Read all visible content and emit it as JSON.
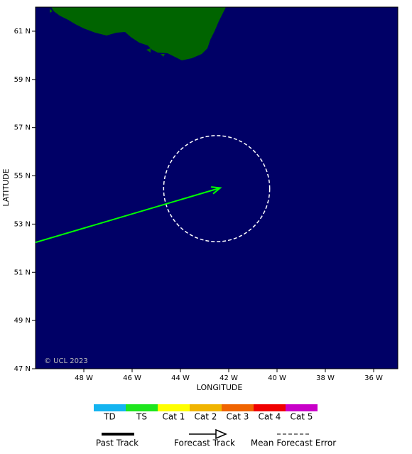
{
  "chart_data": {
    "type": "map",
    "xlabel": "LONGITUDE",
    "ylabel": "LATITUDE",
    "xlim": [
      -50,
      -35
    ],
    "ylim": [
      47,
      62
    ],
    "xticks": [
      {
        "value": -48,
        "label": "48 W"
      },
      {
        "value": -46,
        "label": "46 W"
      },
      {
        "value": -44,
        "label": "44 W"
      },
      {
        "value": -42,
        "label": "42 W"
      },
      {
        "value": -40,
        "label": "40 W"
      },
      {
        "value": -38,
        "label": "38 W"
      },
      {
        "value": -36,
        "label": "36 W"
      }
    ],
    "yticks": [
      {
        "value": 47,
        "label": "47 N"
      },
      {
        "value": 49,
        "label": "49 N"
      },
      {
        "value": 51,
        "label": "51 N"
      },
      {
        "value": 53,
        "label": "53 N"
      },
      {
        "value": 55,
        "label": "55 N"
      },
      {
        "value": 57,
        "label": "57 N"
      },
      {
        "value": 59,
        "label": "59 N"
      },
      {
        "value": 61,
        "label": "61 N"
      }
    ],
    "ocean_color": "#000066",
    "land_color": "#006400",
    "copyright": "© UCL 2023",
    "forecast_track": {
      "name": "Forecast Track",
      "color": "#00ff00",
      "x": [
        -50,
        -42.35
      ],
      "y": [
        52.24,
        54.5
      ]
    },
    "error_cone": {
      "name": "Mean Forecast Error",
      "color": "#ffffff",
      "center": [
        -42.5,
        54.47
      ],
      "radius": 2.2
    },
    "past_track": {
      "name": "Past Track",
      "color": "#000000"
    },
    "intensity_scale": {
      "categories": [
        "TD",
        "TS",
        "Cat 1",
        "Cat 2",
        "Cat 3",
        "Cat 4",
        "Cat 5"
      ],
      "colors": [
        "#14b4f0",
        "#1ee61e",
        "#ffff00",
        "#f0b400",
        "#f06400",
        "#f00000",
        "#c800c8"
      ]
    }
  }
}
